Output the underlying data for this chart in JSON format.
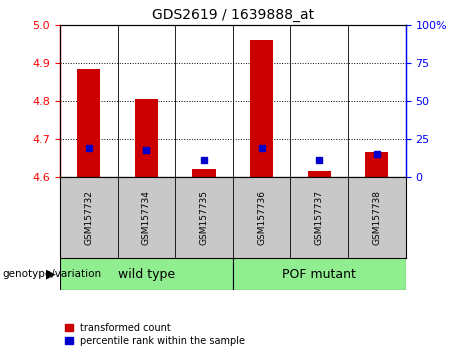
{
  "title": "GDS2619 / 1639888_at",
  "samples": [
    "GSM157732",
    "GSM157734",
    "GSM157735",
    "GSM157736",
    "GSM157737",
    "GSM157738"
  ],
  "red_bar_tops": [
    4.885,
    4.805,
    4.62,
    4.96,
    4.615,
    4.665
  ],
  "red_bar_base": 4.6,
  "blue_marker_values": [
    4.675,
    4.67,
    4.645,
    4.675,
    4.645,
    4.66
  ],
  "ylim_left": [
    4.6,
    5.0
  ],
  "ylim_right": [
    0,
    100
  ],
  "yticks_left": [
    4.6,
    4.7,
    4.8,
    4.9,
    5.0
  ],
  "yticks_right": [
    0,
    25,
    50,
    75,
    100
  ],
  "ytick_labels_right": [
    "0",
    "25",
    "50",
    "75",
    "100%"
  ],
  "bar_color": "#cc0000",
  "marker_color": "#0000cc",
  "bar_width": 0.4,
  "legend_items": [
    "transformed count",
    "percentile rank within the sample"
  ],
  "group_label": "genotype/variation",
  "wild_type_label": "wild type",
  "pof_label": "POF mutant",
  "group_color": "#90EE90",
  "xtick_bg": "#c8c8c8",
  "title_fontsize": 10,
  "axis_fontsize": 8,
  "sample_fontsize": 6.5,
  "group_fontsize": 9,
  "legend_fontsize": 7
}
